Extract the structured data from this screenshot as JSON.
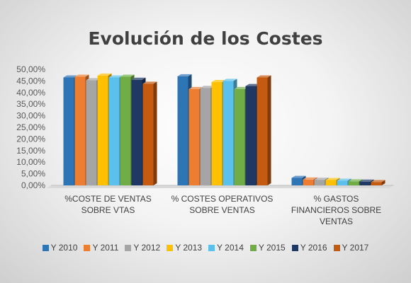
{
  "chart_data": {
    "type": "bar",
    "title": "Evolución de los Costes",
    "categories": [
      [
        "%COSTE DE VENTAS",
        "SOBRE VTAS"
      ],
      [
        "% COSTES OPERATIVOS",
        "SOBRE VENTAS"
      ],
      [
        "% GASTOS",
        "FINANCIEROS SOBRE",
        "VENTAS"
      ]
    ],
    "ylim": [
      0,
      50
    ],
    "yticks": [
      "0,00%",
      "5,00%",
      "10,00%",
      "15,00%",
      "20,00%",
      "25,00%",
      "30,00%",
      "35,00%",
      "40,00%",
      "45,00%",
      "50,00%"
    ],
    "series": [
      {
        "name": "Y 2010",
        "color": "#2E75B6",
        "values": [
          46.5,
          47.0,
          3.2
        ]
      },
      {
        "name": "Y 2011",
        "color": "#ED7D31",
        "values": [
          46.8,
          41.5,
          2.5
        ]
      },
      {
        "name": "Y 2012",
        "color": "#A5A5A5",
        "values": [
          45.3,
          42.0,
          2.4
        ]
      },
      {
        "name": "Y 2013",
        "color": "#FFC000",
        "values": [
          47.3,
          44.5,
          2.3
        ]
      },
      {
        "name": "Y 2014",
        "color": "#5BC0EB",
        "values": [
          46.5,
          45.0,
          2.0
        ]
      },
      {
        "name": "Y 2015",
        "color": "#70AD47",
        "values": [
          46.8,
          41.5,
          1.7
        ]
      },
      {
        "name": "Y 2016",
        "color": "#1F3864",
        "values": [
          45.5,
          42.8,
          1.6
        ]
      },
      {
        "name": "Y 2017",
        "color": "#C55A11",
        "values": [
          43.8,
          46.5,
          1.4
        ]
      }
    ],
    "grid": false,
    "legend": "bottom"
  }
}
